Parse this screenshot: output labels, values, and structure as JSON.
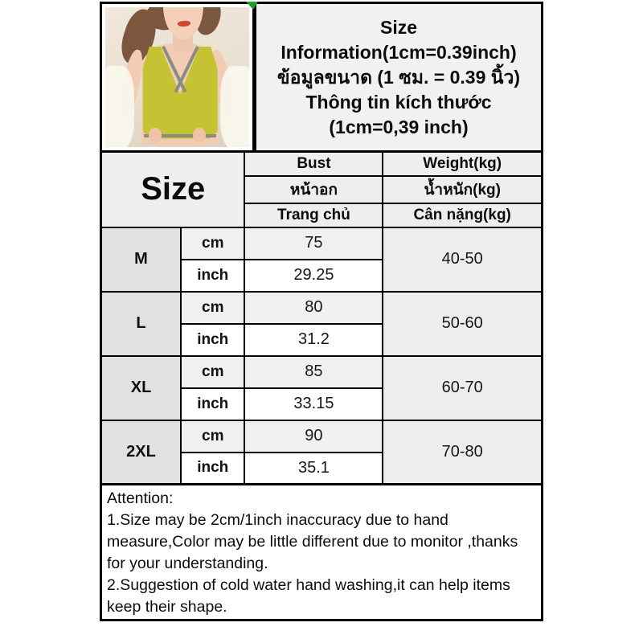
{
  "title_box": {
    "lines": [
      "Size",
      "Information(1cm=0.39inch)",
      "ข้อมูลขนาด (1 ซม. = 0.39 นิ้ว)",
      "Thông tin kích thước",
      "(1cm=0,39 inch)"
    ]
  },
  "table": {
    "size_header": "Size",
    "bust_headers": [
      "Bust",
      "หน้าอก",
      "Trang chủ"
    ],
    "weight_headers": [
      "Weight(kg)",
      "น้ำหนัก(kg)",
      "Cân nặng(kg)"
    ],
    "rows": [
      {
        "size": "M",
        "unit1": "cm",
        "val1": "75",
        "unit2": "inch",
        "val2": "29.25",
        "weight": "40-50"
      },
      {
        "size": "L",
        "unit1": "cm",
        "val1": "80",
        "unit2": "inch",
        "val2": "31.2",
        "weight": "50-60"
      },
      {
        "size": "XL",
        "unit1": "cm",
        "val1": "85",
        "unit2": "inch",
        "val2": "33.15",
        "weight": "60-70"
      },
      {
        "size": "2XL",
        "unit1": "cm",
        "val1": "90",
        "unit2": "inch",
        "val2": "35.1",
        "weight": "70-80"
      }
    ]
  },
  "attention": {
    "lines": [
      "Attention:",
      "1.Size may be 2cm/1inch inaccuracy due to hand",
      "measure,Color may be little different due to monitor ,thanks",
      "for your understanding.",
      "2.Suggestion of cold water hand washing,it can help items",
      "keep their shape."
    ]
  },
  "colors": {
    "marker_green": "#1f9e2e",
    "bra_yellow": "#c5c234",
    "trim_gray": "#8b8b85",
    "cell_gray": "#efeeec",
    "border_black": "#000000"
  }
}
